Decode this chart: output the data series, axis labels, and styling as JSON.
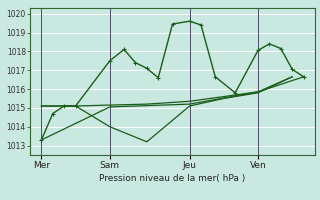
{
  "background_color": "#c8e8e0",
  "grid_color": "#ffffff",
  "line_color": "#1a5c1a",
  "xlabel": "Pression niveau de la mer( hPa )",
  "ylim": [
    1012.5,
    1020.3
  ],
  "yticks": [
    1013,
    1014,
    1015,
    1016,
    1017,
    1018,
    1019,
    1020
  ],
  "day_labels": [
    "Mer",
    "Sam",
    "Jeu",
    "Ven"
  ],
  "day_positions": [
    0.04,
    0.28,
    0.56,
    0.8
  ],
  "vline_positions": [
    0.04,
    0.28,
    0.56,
    0.8
  ],
  "xlim": [
    0.0,
    1.0
  ],
  "line1_x": [
    0.04,
    0.08,
    0.12,
    0.16,
    0.28,
    0.33,
    0.37,
    0.41,
    0.45,
    0.5,
    0.56,
    0.6,
    0.65,
    0.72,
    0.8,
    0.84,
    0.88,
    0.92,
    0.96
  ],
  "line1_y": [
    1013.3,
    1014.7,
    1015.1,
    1015.1,
    1017.5,
    1018.1,
    1017.4,
    1017.1,
    1016.6,
    1019.45,
    1019.6,
    1019.4,
    1016.65,
    1015.8,
    1018.05,
    1018.4,
    1018.15,
    1017.05,
    1016.65
  ],
  "line2_x": [
    0.04,
    0.16,
    0.28,
    0.41,
    0.56,
    0.68,
    0.8,
    0.92
  ],
  "line2_y": [
    1015.1,
    1015.1,
    1015.15,
    1015.2,
    1015.35,
    1015.6,
    1015.85,
    1016.65
  ],
  "line3_x": [
    0.04,
    0.16,
    0.28,
    0.41,
    0.56,
    0.68,
    0.8,
    0.92
  ],
  "line3_y": [
    1015.1,
    1015.1,
    1014.0,
    1013.2,
    1015.1,
    1015.5,
    1015.8,
    1016.65
  ],
  "line4_x": [
    0.04,
    0.28,
    0.56,
    0.8,
    0.96
  ],
  "line4_y": [
    1013.3,
    1015.05,
    1015.2,
    1015.85,
    1016.65
  ]
}
